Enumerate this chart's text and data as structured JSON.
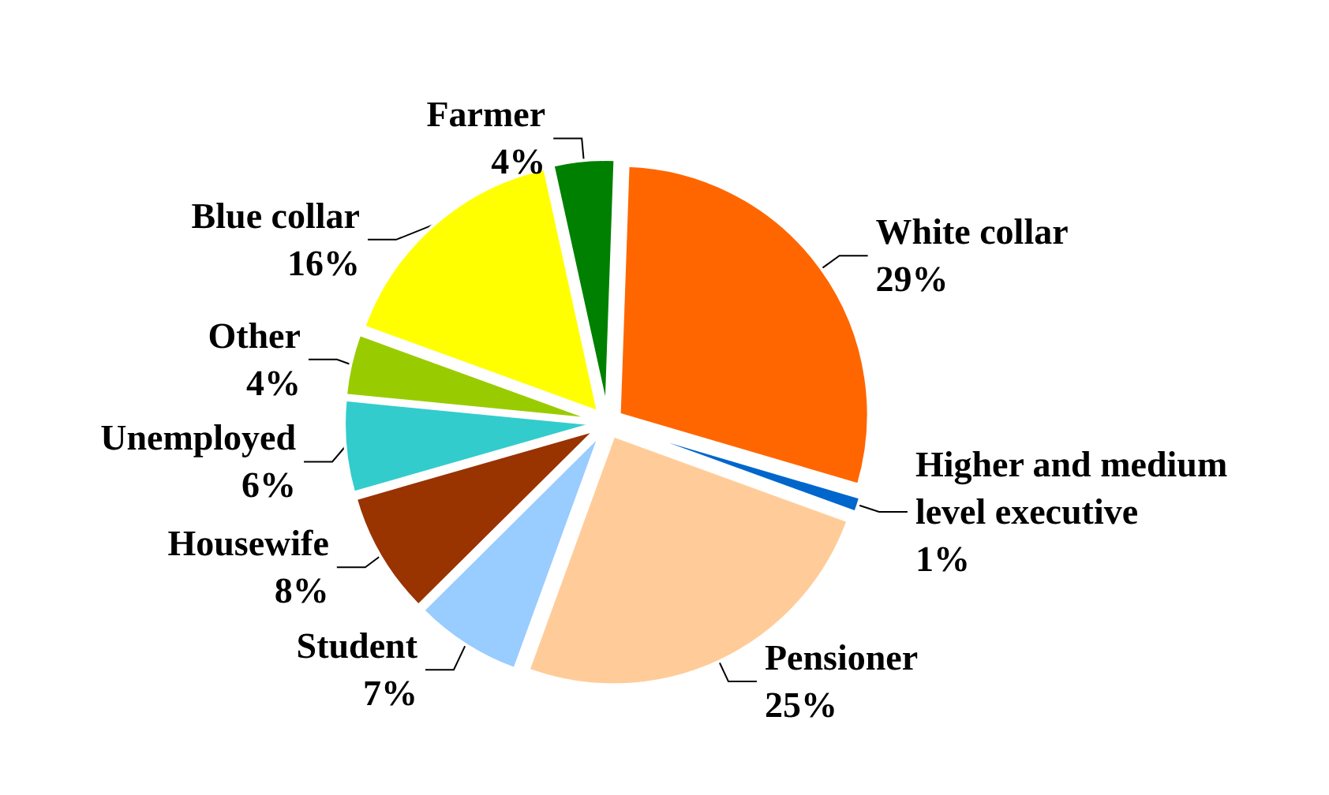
{
  "chart_data": {
    "type": "pie",
    "categories": [
      "White collar",
      "Higher and medium level executive",
      "Pensioner",
      "Student",
      "Housewife",
      "Unemployed",
      "Other",
      "Blue collar",
      "Farmer"
    ],
    "values": [
      29,
      1,
      25,
      7,
      8,
      6,
      4,
      16,
      4
    ],
    "value_labels": [
      "29%",
      "1%",
      "25%",
      "7%",
      "8%",
      "6%",
      "4%",
      "16%",
      "4%"
    ],
    "colors": [
      "#ff6600",
      "#0066cc",
      "#ffcc99",
      "#99ccff",
      "#993300",
      "#33cccc",
      "#99cc00",
      "#ffff00",
      "#008000"
    ],
    "legend": false
  }
}
